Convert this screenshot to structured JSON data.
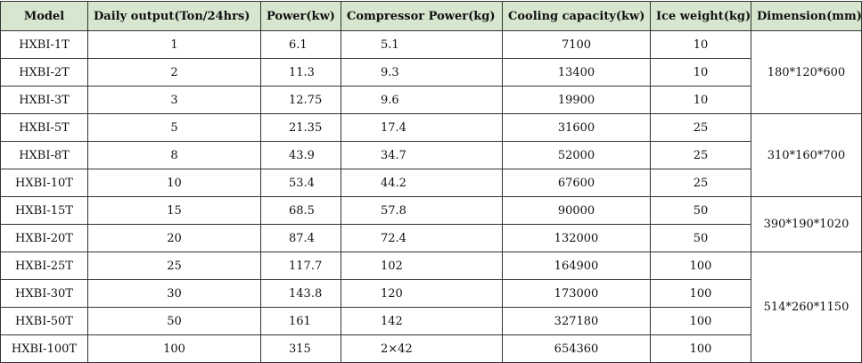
{
  "headers": {
    "model": "Model",
    "daily_output": "Daily output(Ton/24hrs)",
    "power": "Power(kw)",
    "compressor_power": "Compressor  Power(kg)",
    "cooling_capacity": "Cooling  capacity(kw)",
    "ice_weight": "Ice  weight(kg)",
    "dimension": "Dimension(mm)"
  },
  "rows": [
    {
      "model": "HXBI-1T",
      "output": "1",
      "power": "6.1",
      "compressor": "5.1",
      "cooling": "7100",
      "ice": "10"
    },
    {
      "model": "HXBI-2T",
      "output": "2",
      "power": "11.3",
      "compressor": "9.3",
      "cooling": "13400",
      "ice": "10"
    },
    {
      "model": "HXBI-3T",
      "output": "3",
      "power": "12.75",
      "compressor": "9.6",
      "cooling": "19900",
      "ice": "10"
    },
    {
      "model": "HXBI-5T",
      "output": "5",
      "power": "21.35",
      "compressor": "17.4",
      "cooling": "31600",
      "ice": "25"
    },
    {
      "model": "HXBI-8T",
      "output": "8",
      "power": "43.9",
      "compressor": "34.7",
      "cooling": "52000",
      "ice": "25"
    },
    {
      "model": "HXBI-10T",
      "output": "10",
      "power": "53.4",
      "compressor": "44.2",
      "cooling": "67600",
      "ice": "25"
    },
    {
      "model": "HXBI-15T",
      "output": "15",
      "power": "68.5",
      "compressor": "57.8",
      "cooling": "90000",
      "ice": "50"
    },
    {
      "model": "HXBI-20T",
      "output": "20",
      "power": "87.4",
      "compressor": "72.4",
      "cooling": "132000",
      "ice": "50"
    },
    {
      "model": "HXBI-25T",
      "output": "25",
      "power": "117.7",
      "compressor": "102",
      "cooling": "164900",
      "ice": "100"
    },
    {
      "model": "HXBI-30T",
      "output": "30",
      "power": "143.8",
      "compressor": "120",
      "cooling": "173000",
      "ice": "100"
    },
    {
      "model": "HXBI-50T",
      "output": "50",
      "power": "161",
      "compressor": "142",
      "cooling": "327180",
      "ice": "100"
    },
    {
      "model": "HXBI-100T",
      "output": "100",
      "power": "315",
      "compressor": "2×42",
      "cooling": "654360",
      "ice": "100"
    }
  ],
  "dimensions": [
    "180*120*600",
    "310*160*700",
    "390*190*1020",
    "514*260*1150"
  ],
  "colors": {
    "header_bg": "#d7e7cf",
    "border": "#333333"
  }
}
